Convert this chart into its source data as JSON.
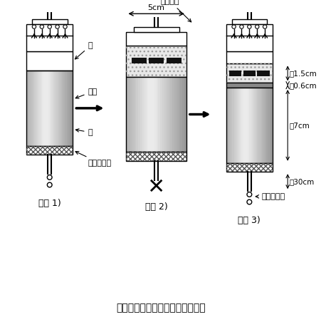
{
  "title": "図２　溶出特性の測定手順の概要",
  "step_labels": [
    "手順 1)",
    "手順 2)",
    "手順 3)"
  ],
  "label_kyuzai": "資材",
  "label_suna1": "砂",
  "label_suna2": "砂",
  "label_filter": "フィルター",
  "label_kyusui": "給水装置",
  "label_5cm": "5cm",
  "label_15cm": "約1.5cm",
  "label_06cm": "約0.6cm",
  "label_7cm": "約7cm",
  "label_30cm": "約30cm",
  "label_saisui": "採水、分析",
  "bg_color": "#ffffff",
  "dot_color": "#e8e8e8",
  "black_rect": "#111111",
  "hatch_color": "#555555"
}
